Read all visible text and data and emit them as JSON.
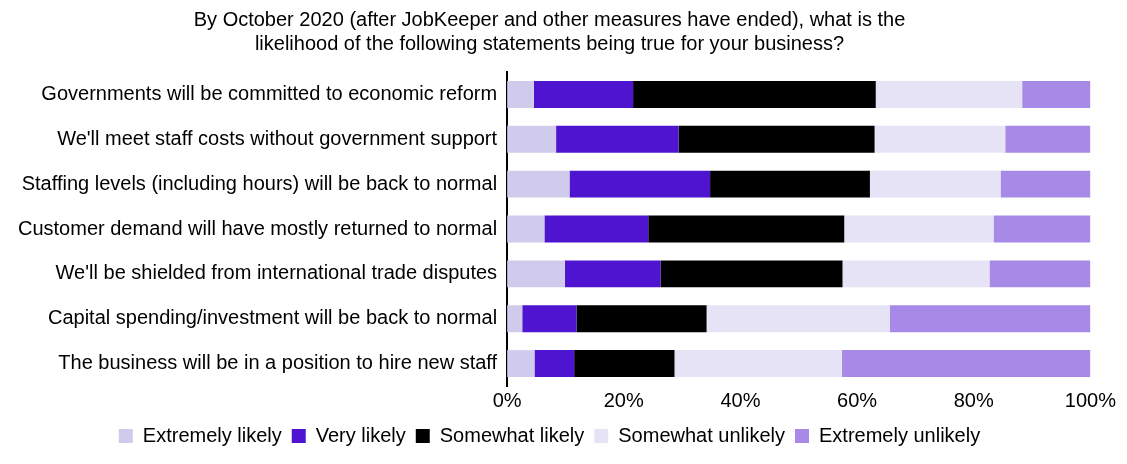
{
  "chart_data": {
    "type": "bar",
    "orientation": "horizontal",
    "stacked": true,
    "title": "By October 2020 (after JobKeeper and other measures have ended), what is the likelihood of the following statements being true for your business?",
    "categories": [
      "Governments will be committed to economic reform",
      "We'll meet staff costs without government support",
      "Staffing levels (including hours) will be back to normal",
      "Customer demand will have mostly returned to normal",
      "We'll be shielded from international trade disputes",
      "Capital spending/investment will be back to normal",
      "The business will be in a position to hire new staff"
    ],
    "series": [
      {
        "name": "Extremely likely",
        "color": "#d0cbec",
        "values": [
          4.6,
          8.4,
          10.7,
          6.4,
          9.9,
          2.6,
          4.7
        ]
      },
      {
        "name": "Very likely",
        "color": "#4f14d0",
        "values": [
          17.0,
          21.0,
          24.1,
          17.8,
          16.4,
          9.3,
          6.8
        ]
      },
      {
        "name": "Somewhat likely",
        "color": "#000000",
        "values": [
          41.6,
          33.6,
          27.4,
          33.6,
          31.2,
          22.3,
          17.2
        ]
      },
      {
        "name": "Somewhat unlikely",
        "color": "#e6e3f6",
        "values": [
          25.1,
          22.4,
          22.4,
          25.6,
          25.2,
          31.4,
          28.7
        ]
      },
      {
        "name": "Extremely unlikely",
        "color": "#a78ae8",
        "values": [
          11.7,
          14.6,
          15.4,
          16.6,
          17.3,
          34.4,
          42.6
        ]
      }
    ],
    "xlim": [
      0,
      100
    ],
    "xticks": [
      {
        "value": 0,
        "label": "0%"
      },
      {
        "value": 20,
        "label": "20%"
      },
      {
        "value": 40,
        "label": "40%"
      },
      {
        "value": 60,
        "label": "60%"
      },
      {
        "value": 80,
        "label": "80%"
      },
      {
        "value": 100,
        "label": "100%"
      }
    ],
    "grid": false,
    "legend": "bottom"
  }
}
